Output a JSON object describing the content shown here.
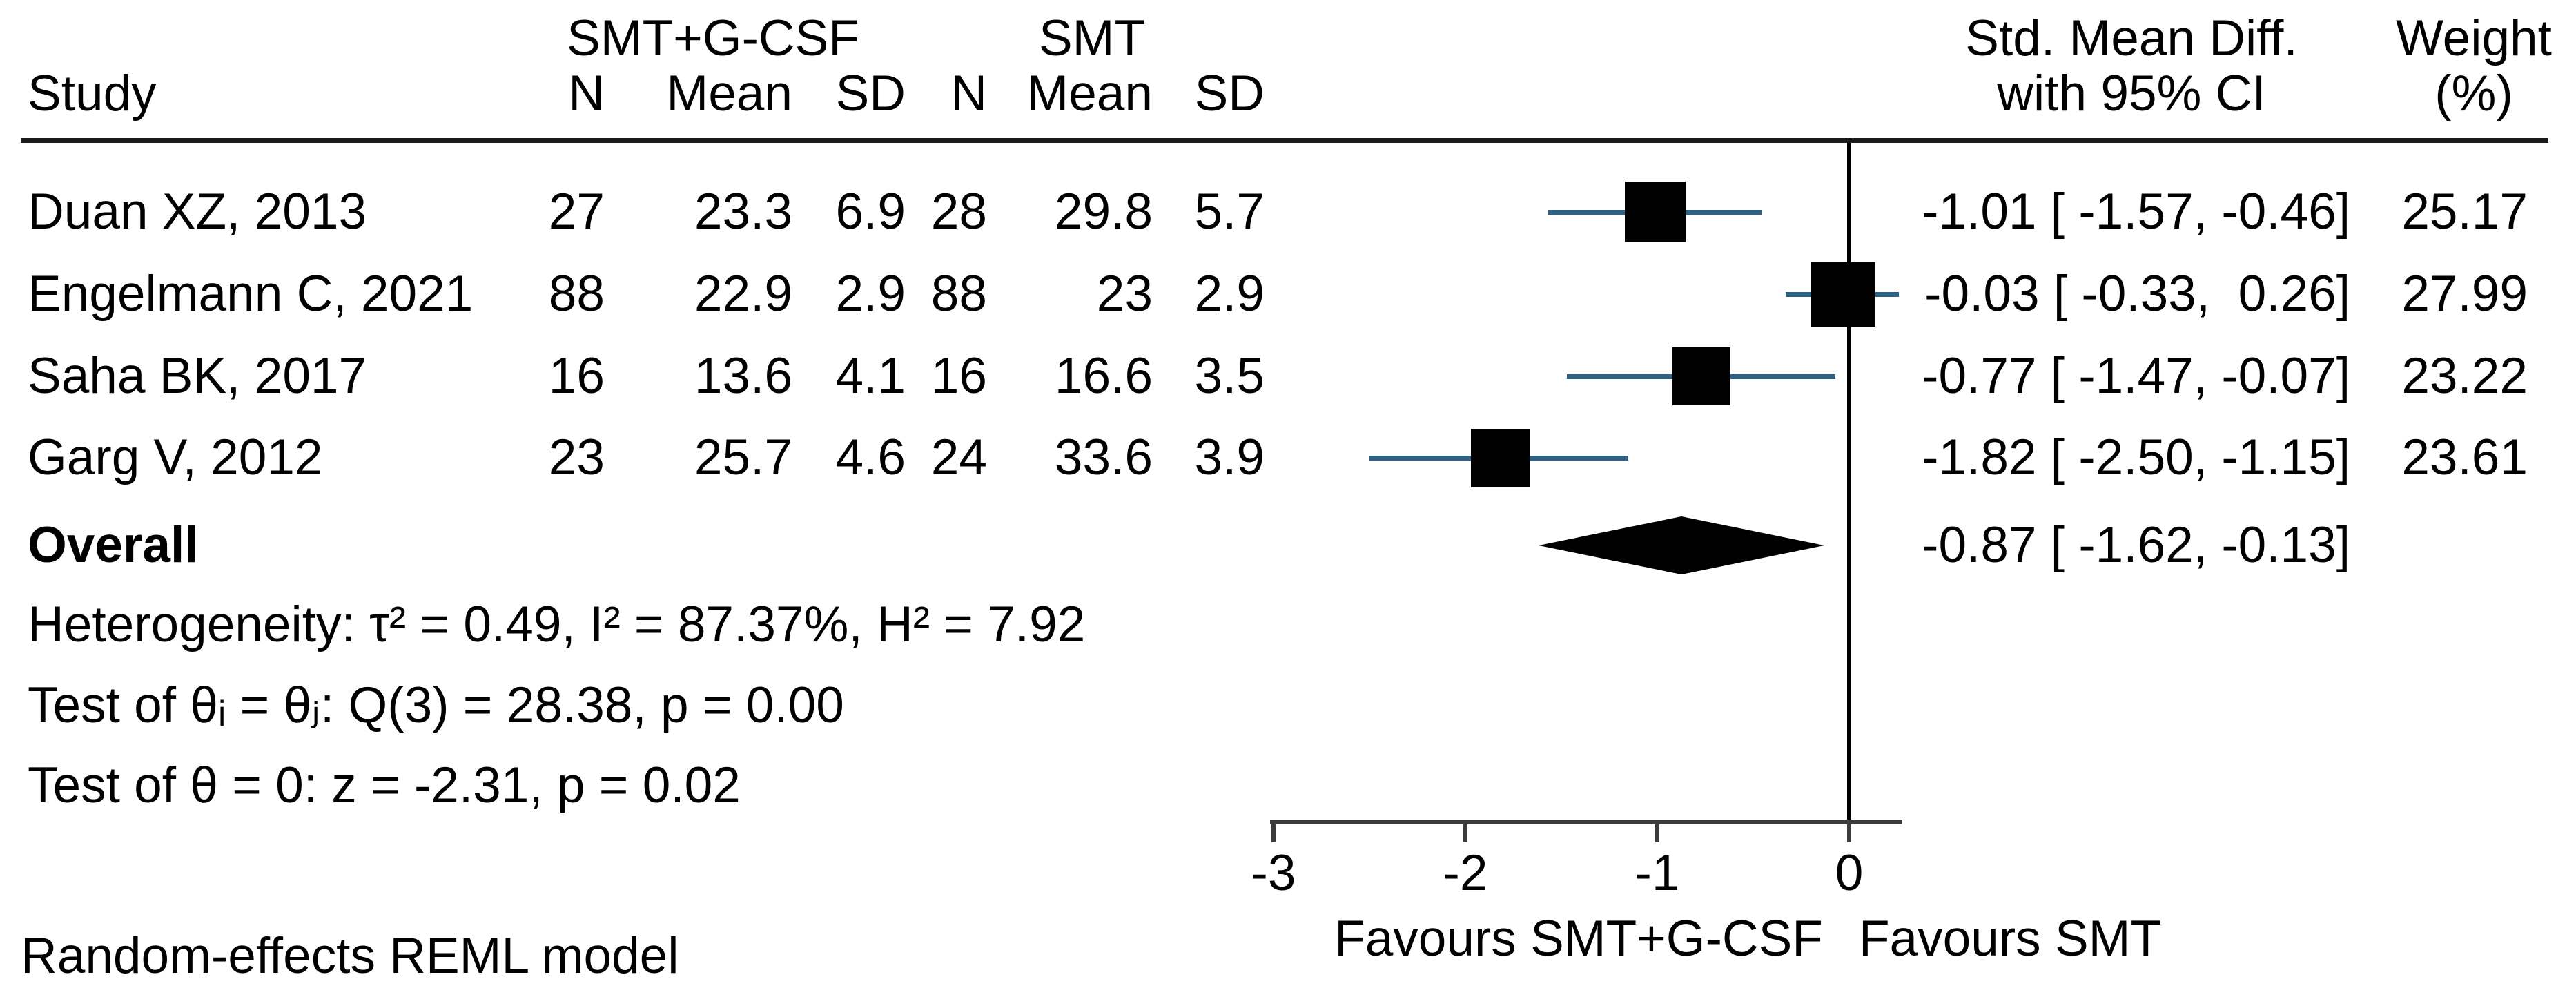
{
  "figure": {
    "columns": {
      "study": "Study",
      "group1": "SMT+G-CSF",
      "group2": "SMT",
      "n1": "N",
      "mean1": "Mean",
      "sd1": "SD",
      "n2": "N",
      "mean2": "Mean",
      "sd2": "SD",
      "effect_line1": "Std. Mean Diff.",
      "effect_line2": "with 95% CI",
      "weight_line1": "Weight",
      "weight_line2": "(%)"
    },
    "studies": [
      {
        "name": "Duan XZ, 2013",
        "n1": "27",
        "mean1": "23.3",
        "sd1": "6.9",
        "n2": "28",
        "mean2": "29.8",
        "sd2": "5.7",
        "est": -1.01,
        "lo": -1.57,
        "hi": -0.46,
        "ci_text": "-1.01 [ -1.57, -0.46]",
        "weight": 25.17,
        "weight_text": "25.17"
      },
      {
        "name": "Engelmann C, 2021",
        "n1": "88",
        "mean1": "22.9",
        "sd1": "2.9",
        "n2": "88",
        "mean2": "23",
        "sd2": "2.9",
        "est": -0.03,
        "lo": -0.33,
        "hi": 0.26,
        "ci_text": "-0.03 [ -0.33,  0.26]",
        "weight": 27.99,
        "weight_text": "27.99"
      },
      {
        "name": "Saha BK, 2017",
        "n1": "16",
        "mean1": "13.6",
        "sd1": "4.1",
        "n2": "16",
        "mean2": "16.6",
        "sd2": "3.5",
        "est": -0.77,
        "lo": -1.47,
        "hi": -0.07,
        "ci_text": "-0.77 [ -1.47, -0.07]",
        "weight": 23.22,
        "weight_text": "23.22"
      },
      {
        "name": "Garg V, 2012",
        "n1": "23",
        "mean1": "25.7",
        "sd1": "4.6",
        "n2": "24",
        "mean2": "33.6",
        "sd2": "3.9",
        "est": -1.82,
        "lo": -2.5,
        "hi": -1.15,
        "ci_text": "-1.82 [ -2.50, -1.15]",
        "weight": 23.61,
        "weight_text": "23.61"
      }
    ],
    "overall": {
      "label": "Overall",
      "est": -0.87,
      "lo": -1.62,
      "hi": -0.13,
      "ci_text": "-0.87 [ -1.62, -0.13]"
    },
    "stats": {
      "heterogeneity": "Heterogeneity: τ² = 0.49, I² = 87.37%, H² = 7.92",
      "test_group": "Test of θᵢ = θⱼ: Q(3) = 28.38, p = 0.00",
      "test_zero": "Test of θ = 0: z = -2.31, p = 0.02"
    },
    "axis": {
      "ticks": [
        "-3",
        "-2",
        "-1",
        "0"
      ],
      "tick_values": [
        -3,
        -2,
        -1,
        0
      ],
      "favours_left": "Favours SMT+G-CSF",
      "favours_right": "Favours SMT"
    },
    "note": "Random-effects REML model",
    "colors": {
      "ci_line": "#2d6285",
      "marker": "#000000",
      "diamond": "#000000",
      "zero_line": "#000000",
      "axis": "#3c3c3c",
      "rule": "#1a1a1a"
    }
  },
  "chart_data": {
    "type": "forest",
    "effect_measure": "Std. Mean Diff.",
    "model": "Random-effects REML model",
    "x_ticks": [
      -3,
      -2,
      -1,
      0
    ],
    "xlim": [
      -3,
      0.27
    ],
    "zero_line": 0,
    "groups": {
      "treatment_label": "SMT+G-CSF",
      "control_label": "SMT"
    },
    "columns": [
      "Study",
      "N",
      "Mean",
      "SD",
      "N",
      "Mean",
      "SD",
      "Std. Mean Diff. with 95% CI",
      "Weight (%)"
    ],
    "studies": [
      {
        "study": "Duan XZ, 2013",
        "treatment": {
          "n": 27,
          "mean": 23.3,
          "sd": 6.9
        },
        "control": {
          "n": 28,
          "mean": 29.8,
          "sd": 5.7
        },
        "smd": -1.01,
        "ci95": [
          -1.57,
          -0.46
        ],
        "weight_pct": 25.17
      },
      {
        "study": "Engelmann C, 2021",
        "treatment": {
          "n": 88,
          "mean": 22.9,
          "sd": 2.9
        },
        "control": {
          "n": 88,
          "mean": 23,
          "sd": 2.9
        },
        "smd": -0.03,
        "ci95": [
          -0.33,
          0.26
        ],
        "weight_pct": 27.99
      },
      {
        "study": "Saha BK, 2017",
        "treatment": {
          "n": 16,
          "mean": 13.6,
          "sd": 4.1
        },
        "control": {
          "n": 16,
          "mean": 16.6,
          "sd": 3.5
        },
        "smd": -0.77,
        "ci95": [
          -1.47,
          -0.07
        ],
        "weight_pct": 23.22
      },
      {
        "study": "Garg V, 2012",
        "treatment": {
          "n": 23,
          "mean": 25.7,
          "sd": 4.6
        },
        "control": {
          "n": 24,
          "mean": 33.6,
          "sd": 3.9
        },
        "smd": -1.82,
        "ci95": [
          -2.5,
          -1.15
        ],
        "weight_pct": 23.61
      }
    ],
    "overall": {
      "smd": -0.87,
      "ci95": [
        -1.62,
        -0.13
      ]
    },
    "heterogeneity": {
      "tau2": 0.49,
      "I2_pct": 87.37,
      "H2": 7.92,
      "Q": 28.38,
      "Q_df": 3,
      "p_Q": 0.0
    },
    "test_overall": {
      "z": -2.31,
      "p": 0.02
    },
    "favours": {
      "left": "Favours SMT+G-CSF",
      "right": "Favours SMT"
    }
  }
}
